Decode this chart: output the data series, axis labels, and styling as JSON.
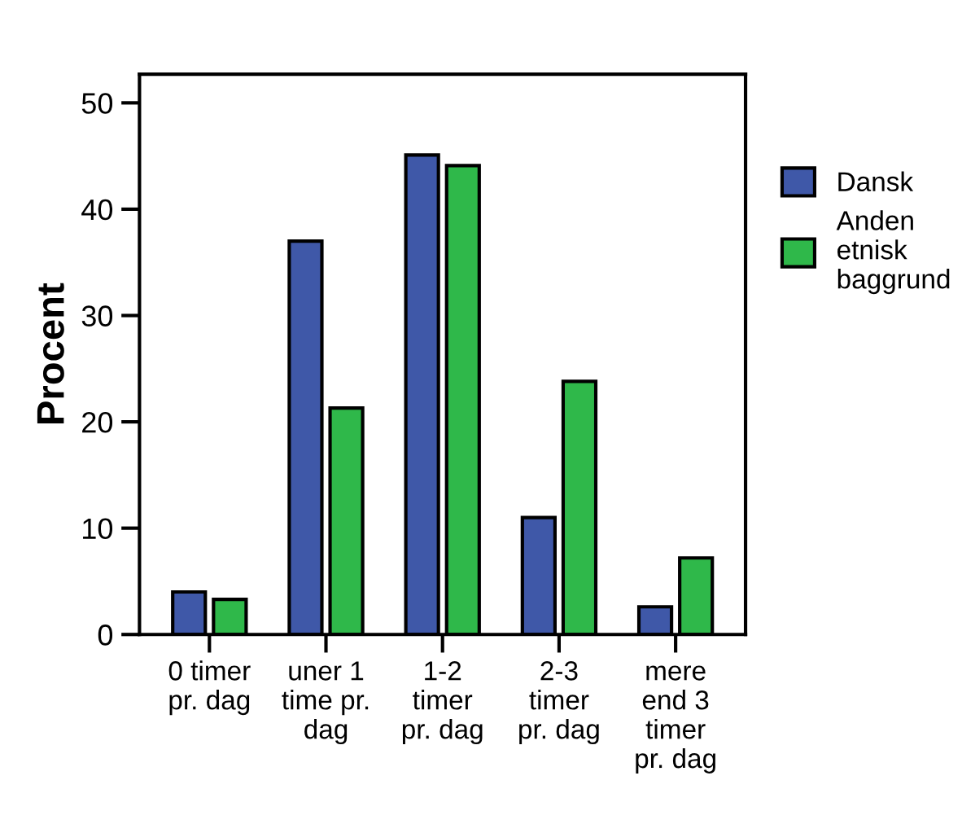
{
  "chart_data": {
    "type": "bar",
    "ylabel": "Procent",
    "categories": [
      "0 timer\npr. dag",
      "uner 1\ntime pr.\ndag",
      "1-2\ntimer\npr. dag",
      "2-3\ntimer\npr. dag",
      "mere\nend 3\ntimer\npr. dag"
    ],
    "series": [
      {
        "name": "Dansk",
        "color": "#3f58a8",
        "values": [
          4.0,
          37.0,
          45.1,
          11.0,
          2.6
        ]
      },
      {
        "name": "Anden\netnisk\nbaggrund",
        "color": "#2fb84a",
        "values": [
          3.3,
          21.3,
          44.1,
          23.8,
          7.2
        ]
      }
    ],
    "ylim": [
      0,
      52.7
    ],
    "yticks": [
      0,
      10,
      20,
      30,
      40,
      50
    ],
    "grid": false,
    "legend": "right"
  }
}
